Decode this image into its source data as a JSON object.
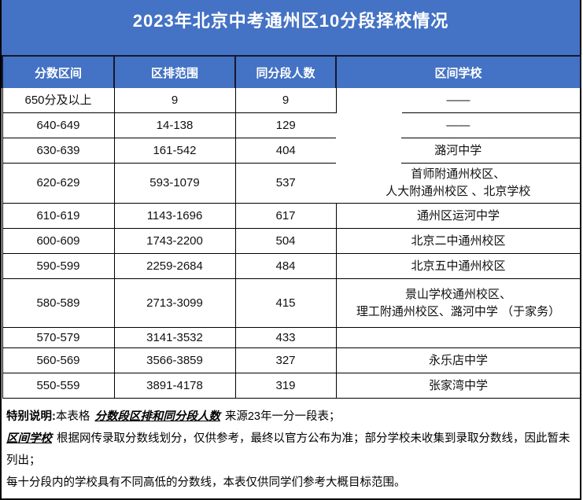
{
  "title": "2023年北京中考通州区10分段择校情况",
  "colors": {
    "accent": "#4472C4",
    "border_dark": "#14192b"
  },
  "table": {
    "columns": [
      "分数区间",
      "区排范围",
      "同分段人数",
      "区间学校"
    ],
    "rows": [
      {
        "range": "650分及以上",
        "rank": "9",
        "count": "9",
        "schools": [
          "——"
        ]
      },
      {
        "range": "640-649",
        "rank": "14-138",
        "count": "129",
        "schools": [
          "——"
        ]
      },
      {
        "range": "630-639",
        "rank": "161-542",
        "count": "404",
        "schools": [
          "潞河中学"
        ]
      },
      {
        "range": "620-629",
        "rank": "593-1079",
        "count": "537",
        "schools": [
          "首师附通州校区、",
          "人大附通州校区 、北京学校"
        ]
      },
      {
        "range": "610-619",
        "rank": "1143-1696",
        "count": "617",
        "schools": [
          "通州区运河中学"
        ]
      },
      {
        "range": "600-609",
        "rank": "1743-2200",
        "count": "504",
        "schools": [
          "北京二中通州校区"
        ]
      },
      {
        "range": "590-599",
        "rank": "2259-2684",
        "count": "484",
        "schools": [
          "北京五中通州校区"
        ]
      },
      {
        "range": "580-589",
        "rank": "2713-3099",
        "count": "415",
        "schools": [
          "景山学校通州校区、",
          "理工附通州校区、潞河中学 （于家务）"
        ]
      },
      {
        "range": "570-579",
        "rank": "3141-3532",
        "count": "433",
        "schools": [
          ""
        ]
      },
      {
        "range": "560-569",
        "rank": "3566-3859",
        "count": "327",
        "schools": [
          "永乐店中学"
        ]
      },
      {
        "range": "550-559",
        "rank": "3891-4178",
        "count": "319",
        "schools": [
          "张家湾中学"
        ]
      }
    ]
  },
  "notes": {
    "label": "特别说明:",
    "line1_pre": "本表格",
    "line1_underlined": "分数段区排和同分段人数",
    "line1_post": "来源23年一分一段表；",
    "line2_underlined": "区间学校",
    "line2_post": "根据网传录取分数线划分，仅供参考，最终以官方公布为准；部分学校未收集到录取分数线，因此暂未列出；",
    "line3": "每十分段内的学校具有不同高低的分数线，本表仅供同学们参考大概目标范围。"
  }
}
